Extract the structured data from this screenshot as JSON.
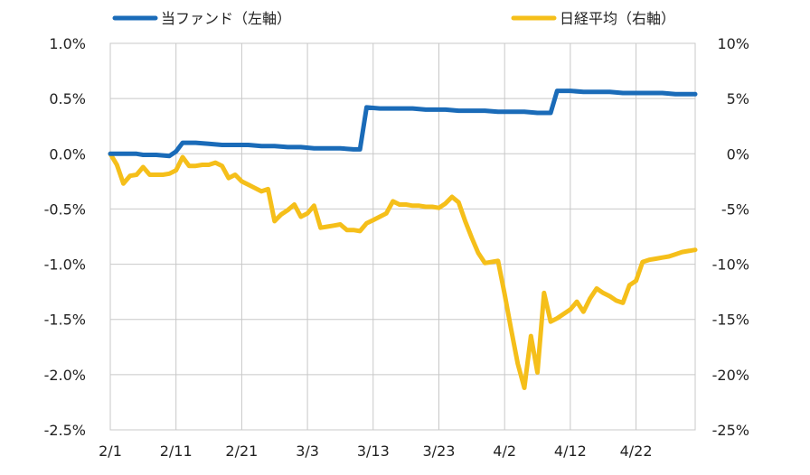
{
  "chart_data": {
    "type": "line",
    "title": "",
    "xlabel": "",
    "ylabel": "",
    "grid": true,
    "legend_placement": "top",
    "x": [
      1,
      2,
      3,
      4,
      5,
      6,
      7,
      8,
      9,
      10,
      11,
      12,
      13,
      14,
      15,
      16,
      17,
      18,
      19,
      20,
      21,
      22,
      23,
      24,
      25,
      26,
      27,
      28,
      29,
      30,
      31,
      32,
      33,
      34,
      35,
      36,
      37,
      38,
      39,
      40,
      41,
      42,
      43,
      44,
      45,
      46,
      47,
      48,
      49,
      50,
      51,
      52,
      53,
      54,
      55,
      56,
      57,
      58,
      59,
      60,
      61,
      62,
      63,
      64,
      65,
      66,
      67,
      68,
      69,
      70,
      71,
      72,
      73,
      74,
      75,
      76,
      77,
      78,
      79,
      80,
      81,
      82,
      83,
      84,
      85,
      86,
      87,
      88,
      89,
      90
    ],
    "x_ticks": [
      {
        "x": 1,
        "label": "2/1"
      },
      {
        "x": 11,
        "label": "2/11"
      },
      {
        "x": 21,
        "label": "2/21"
      },
      {
        "x": 31,
        "label": "3/3"
      },
      {
        "x": 41,
        "label": "3/13"
      },
      {
        "x": 51,
        "label": "3/23"
      },
      {
        "x": 61,
        "label": "4/2"
      },
      {
        "x": 71,
        "label": "4/12"
      },
      {
        "x": 81,
        "label": "4/22"
      }
    ],
    "xlim": [
      1,
      90
    ],
    "y_left": {
      "ylim": [
        -2.5,
        1.0
      ],
      "ticks": [
        1.0,
        0.5,
        0.0,
        -0.5,
        -1.0,
        -1.5,
        -2.0,
        -2.5
      ],
      "tick_labels": [
        "1.0%",
        "0.5%",
        "0.0%",
        "-0.5%",
        "-1.0%",
        "-1.5%",
        "-2.0%",
        "-2.5%"
      ]
    },
    "y_right": {
      "ylim": [
        -25,
        10
      ],
      "ticks": [
        10,
        5,
        0,
        -5,
        -10,
        -15,
        -20,
        -25
      ],
      "tick_labels": [
        "10%",
        "5%",
        "0%",
        "-5%",
        "-10%",
        "-15%",
        "-20%",
        "-25%"
      ]
    },
    "series": [
      {
        "name": "当ファンド（左軸）",
        "axis": "left",
        "color": "#1a6bb8",
        "points": [
          [
            1,
            0.0
          ],
          [
            3,
            0.0
          ],
          [
            5,
            0.0
          ],
          [
            6,
            -0.01
          ],
          [
            8,
            -0.01
          ],
          [
            10,
            -0.02
          ],
          [
            11,
            0.02
          ],
          [
            12,
            0.1
          ],
          [
            14,
            0.1
          ],
          [
            16,
            0.09
          ],
          [
            18,
            0.08
          ],
          [
            20,
            0.08
          ],
          [
            22,
            0.08
          ],
          [
            24,
            0.07
          ],
          [
            26,
            0.07
          ],
          [
            28,
            0.06
          ],
          [
            30,
            0.06
          ],
          [
            32,
            0.05
          ],
          [
            34,
            0.05
          ],
          [
            36,
            0.05
          ],
          [
            38,
            0.04
          ],
          [
            39,
            0.04
          ],
          [
            40,
            0.42
          ],
          [
            42,
            0.41
          ],
          [
            45,
            0.41
          ],
          [
            47,
            0.41
          ],
          [
            49,
            0.4
          ],
          [
            52,
            0.4
          ],
          [
            54,
            0.39
          ],
          [
            56,
            0.39
          ],
          [
            58,
            0.39
          ],
          [
            60,
            0.38
          ],
          [
            62,
            0.38
          ],
          [
            64,
            0.38
          ],
          [
            66,
            0.37
          ],
          [
            68,
            0.37
          ],
          [
            69,
            0.57
          ],
          [
            71,
            0.57
          ],
          [
            73,
            0.56
          ],
          [
            75,
            0.56
          ],
          [
            77,
            0.56
          ],
          [
            79,
            0.55
          ],
          [
            81,
            0.55
          ],
          [
            83,
            0.55
          ],
          [
            85,
            0.55
          ],
          [
            87,
            0.54
          ],
          [
            89,
            0.54
          ],
          [
            90,
            0.54
          ]
        ]
      },
      {
        "name": "日経平均（右軸）",
        "axis": "right",
        "color": "#f5bf1a",
        "points": [
          [
            1,
            0
          ],
          [
            2,
            -1
          ],
          [
            3,
            -2.7
          ],
          [
            4,
            -2
          ],
          [
            5,
            -1.9
          ],
          [
            6,
            -1.2
          ],
          [
            7,
            -1.9
          ],
          [
            8,
            -1.9
          ],
          [
            9,
            -1.9
          ],
          [
            10,
            -1.8
          ],
          [
            11,
            -1.5
          ],
          [
            12,
            -0.3
          ],
          [
            13,
            -1.1
          ],
          [
            14,
            -1.1
          ],
          [
            15,
            -1
          ],
          [
            16,
            -1
          ],
          [
            17,
            -0.8
          ],
          [
            18,
            -1.1
          ],
          [
            19,
            -2.2
          ],
          [
            20,
            -1.9
          ],
          [
            21,
            -2.5
          ],
          [
            22,
            -2.8
          ],
          [
            23,
            -3.1
          ],
          [
            24,
            -3.4
          ],
          [
            25,
            -3.2
          ],
          [
            26,
            -6.1
          ],
          [
            27,
            -5.5
          ],
          [
            28,
            -5.1
          ],
          [
            29,
            -4.6
          ],
          [
            30,
            -5.7
          ],
          [
            31,
            -5.4
          ],
          [
            32,
            -4.7
          ],
          [
            33,
            -6.7
          ],
          [
            34,
            -6.6
          ],
          [
            35,
            -6.5
          ],
          [
            36,
            -6.4
          ],
          [
            37,
            -6.9
          ],
          [
            38,
            -6.9
          ],
          [
            39,
            -7.0
          ],
          [
            40,
            -6.3
          ],
          [
            41,
            -6.0
          ],
          [
            42,
            -5.7
          ],
          [
            43,
            -5.4
          ],
          [
            44,
            -4.3
          ],
          [
            45,
            -4.6
          ],
          [
            46,
            -4.6
          ],
          [
            47,
            -4.7
          ],
          [
            48,
            -4.7
          ],
          [
            49,
            -4.8
          ],
          [
            50,
            -4.8
          ],
          [
            51,
            -4.9
          ],
          [
            52,
            -4.5
          ],
          [
            53,
            -3.9
          ],
          [
            54,
            -4.4
          ],
          [
            55,
            -6.1
          ],
          [
            56,
            -7.6
          ],
          [
            57,
            -9.0
          ],
          [
            58,
            -9.9
          ],
          [
            59,
            -9.8
          ],
          [
            60,
            -9.7
          ],
          [
            61,
            -12.7
          ],
          [
            62,
            -15.9
          ],
          [
            63,
            -19.0
          ],
          [
            64,
            -21.2
          ],
          [
            65,
            -16.5
          ],
          [
            66,
            -19.8
          ],
          [
            67,
            -12.6
          ],
          [
            68,
            -15.2
          ],
          [
            69,
            -14.9
          ],
          [
            70,
            -14.5
          ],
          [
            71,
            -14.1
          ],
          [
            72,
            -13.4
          ],
          [
            73,
            -14.3
          ],
          [
            74,
            -13.1
          ],
          [
            75,
            -12.2
          ],
          [
            76,
            -12.6
          ],
          [
            77,
            -12.9
          ],
          [
            78,
            -13.3
          ],
          [
            79,
            -13.5
          ],
          [
            80,
            -11.9
          ],
          [
            81,
            -11.5
          ],
          [
            82,
            -9.8
          ],
          [
            83,
            -9.6
          ],
          [
            84,
            -9.5
          ],
          [
            85,
            -9.4
          ],
          [
            86,
            -9.3
          ],
          [
            87,
            -9.1
          ],
          [
            88,
            -8.9
          ],
          [
            89,
            -8.8
          ],
          [
            90,
            -8.7
          ]
        ]
      }
    ]
  }
}
